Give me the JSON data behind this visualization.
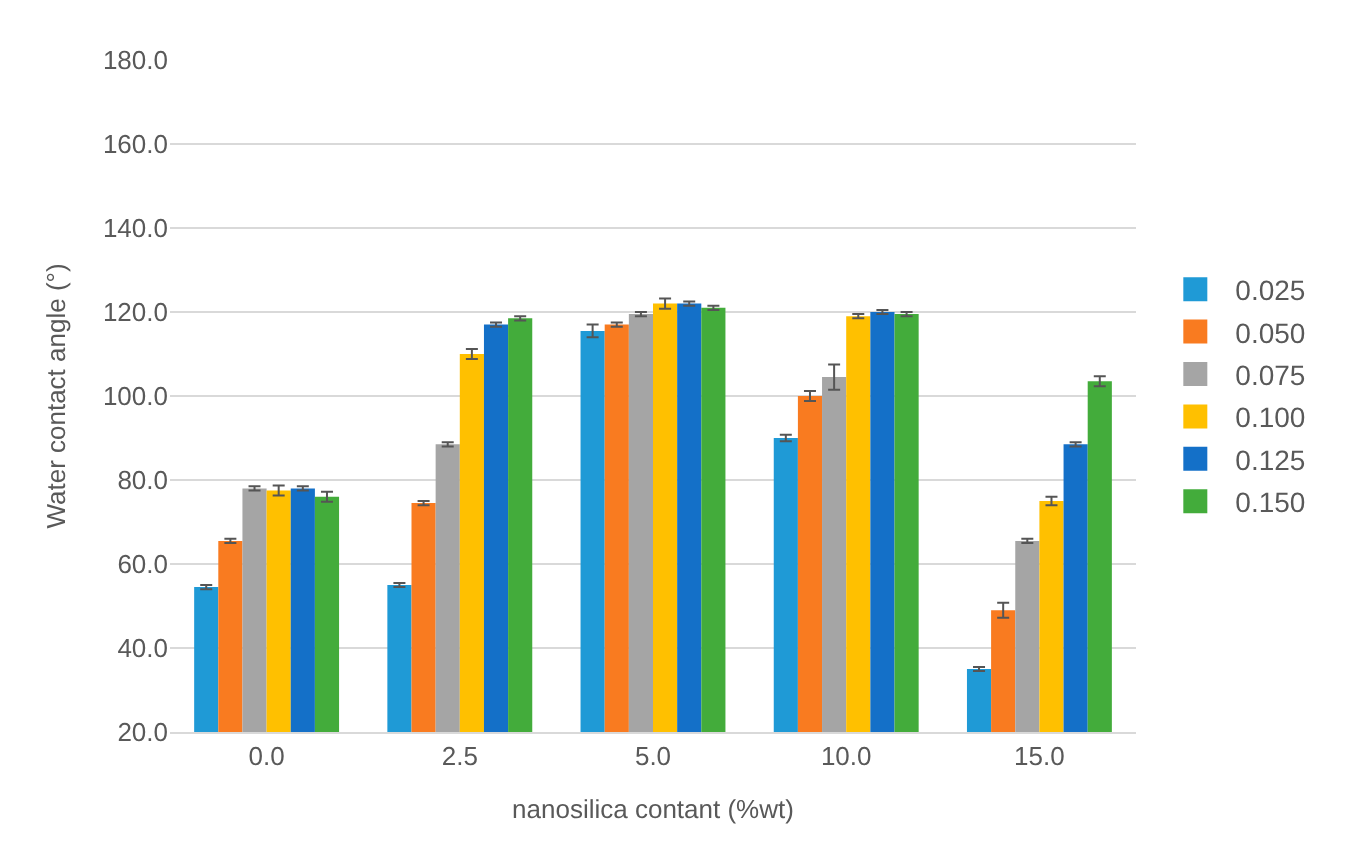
{
  "chart_data": {
    "type": "bar",
    "xlabel": "nanosilica contant (%wt)",
    "ylabel": "Water contact angle (°)",
    "categories": [
      "0.0",
      "2.5",
      "5.0",
      "10.0",
      "15.0"
    ],
    "series": [
      {
        "name": "0.025",
        "color": "#1f9ad6",
        "values": [
          54.5,
          55,
          115.5,
          90,
          35
        ],
        "errors": [
          0.5,
          0.5,
          1.5,
          0.8,
          0.5
        ]
      },
      {
        "name": "0.050",
        "color": "#f97b20",
        "values": [
          65.5,
          74.5,
          117,
          100,
          49
        ],
        "errors": [
          0.5,
          0.5,
          0.5,
          1.2,
          1.8
        ]
      },
      {
        "name": "0.075",
        "color": "#a5a5a5",
        "values": [
          78,
          88.5,
          119.5,
          104.5,
          65.5
        ],
        "errors": [
          0.5,
          0.5,
          0.5,
          3,
          0.5
        ]
      },
      {
        "name": "0.100",
        "color": "#ffc000",
        "values": [
          77.5,
          110,
          122,
          119,
          75
        ],
        "errors": [
          1.2,
          1.2,
          1.2,
          0.5,
          1
        ]
      },
      {
        "name": "0.125",
        "color": "#1470c8",
        "values": [
          78,
          117,
          122,
          120,
          88.5
        ],
        "errors": [
          0.5,
          0.5,
          0.5,
          0.5,
          0.5
        ]
      },
      {
        "name": "0.150",
        "color": "#43ac3b",
        "values": [
          76,
          118.5,
          121,
          119.5,
          103.5
        ],
        "errors": [
          1.2,
          0.5,
          0.5,
          0.5,
          1.2
        ]
      }
    ],
    "ylim": [
      20,
      180
    ],
    "yticks": [
      {
        "value": 20,
        "label": "20.0"
      },
      {
        "value": 40,
        "label": "40.0"
      },
      {
        "value": 60,
        "label": "60.0"
      },
      {
        "value": 80,
        "label": "80.0"
      },
      {
        "value": 100,
        "label": "100.0"
      },
      {
        "value": 120,
        "label": "120.0"
      },
      {
        "value": 140,
        "label": "140.0"
      },
      {
        "value": 160,
        "label": "160.0"
      },
      {
        "value": 180,
        "label": "180.0"
      }
    ],
    "grid": "y",
    "legend": "right"
  }
}
